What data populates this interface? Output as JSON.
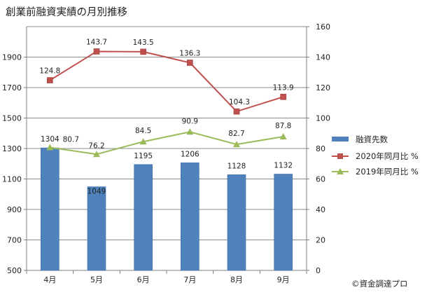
{
  "chart_data": {
    "type": "bar",
    "title": "創業前融資実績の月別推移",
    "categories": [
      "4月",
      "5月",
      "6月",
      "7月",
      "8月",
      "9月"
    ],
    "series": [
      {
        "name": "融資先数",
        "kind": "bar",
        "axis": "left",
        "color": "#4F81BD",
        "values": [
          1304,
          1049,
          1195,
          1206,
          1128,
          1132
        ]
      },
      {
        "name": "2020年同月比 %",
        "kind": "line",
        "axis": "right",
        "color": "#C0504D",
        "values": [
          124.8,
          143.7,
          143.5,
          136.3,
          104.3,
          113.9
        ]
      },
      {
        "name": "2019年同月比 %",
        "kind": "line",
        "axis": "right",
        "color": "#9BBB59",
        "values": [
          80.7,
          76.2,
          84.5,
          90.9,
          82.7,
          87.8
        ]
      }
    ],
    "y_left": {
      "min": 500,
      "max": 2100,
      "ticks": [
        500,
        700,
        900,
        1100,
        1300,
        1500,
        1700,
        1900
      ]
    },
    "y_right": {
      "min": 0,
      "max": 160,
      "ticks": [
        0,
        20,
        40,
        60,
        80,
        100,
        120,
        140,
        160
      ]
    },
    "grid": true,
    "legend": "right"
  },
  "credit": "©資金調達プロ"
}
